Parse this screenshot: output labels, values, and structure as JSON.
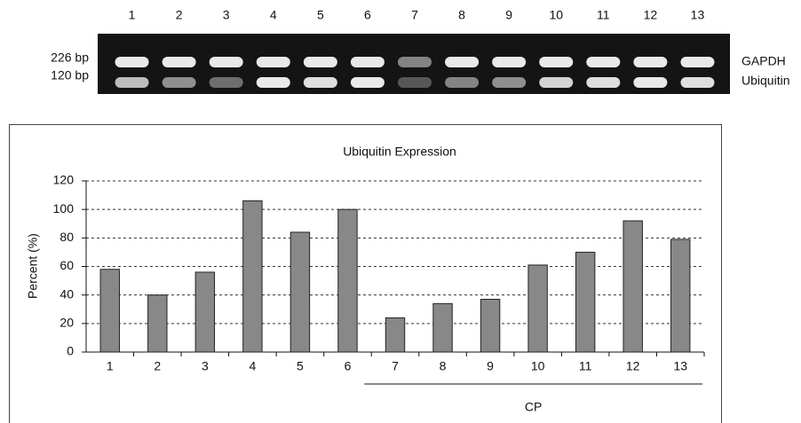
{
  "gel": {
    "lanes": [
      "1",
      "2",
      "3",
      "4",
      "5",
      "6",
      "7",
      "8",
      "9",
      "10",
      "11",
      "12",
      "13"
    ],
    "band_sizes": [
      "226 bp",
      "120 bp"
    ],
    "genes": [
      "GAPDH",
      "Ubiquitin"
    ]
  },
  "chart_data": {
    "type": "bar",
    "title": "Ubiquitin Expression",
    "y_label": "Percent (%)",
    "categories": [
      "1",
      "2",
      "3",
      "4",
      "5",
      "6",
      "7",
      "8",
      "9",
      "10",
      "11",
      "12",
      "13"
    ],
    "values": [
      58,
      40,
      56,
      106,
      84,
      100,
      24,
      34,
      37,
      61,
      70,
      92,
      79
    ],
    "color": "#888888",
    "ylim": [
      0,
      120
    ],
    "yticks": [
      0,
      20,
      40,
      60,
      80,
      100,
      120
    ],
    "grid": true,
    "annotation": "CP"
  }
}
